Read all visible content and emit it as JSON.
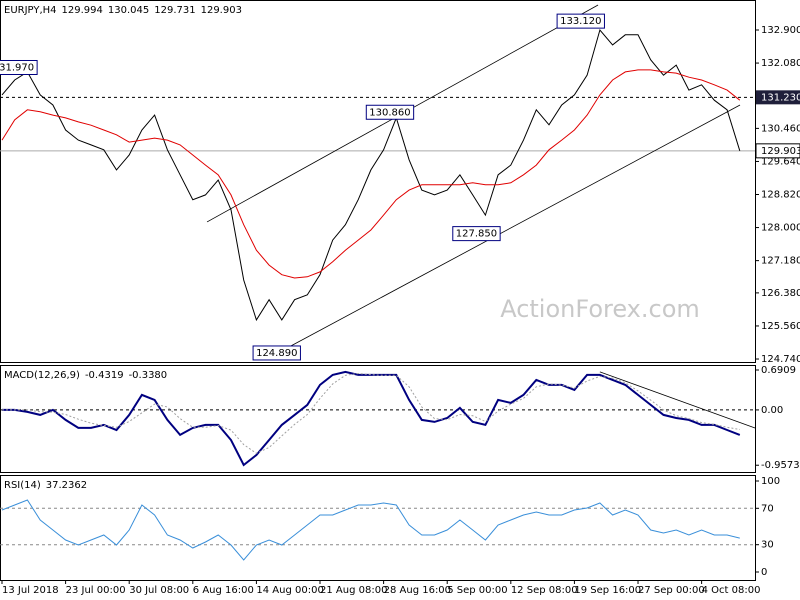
{
  "chart_data": [
    {
      "type": "line",
      "title": "EURJPY,H4",
      "ohlc": [
        129.994,
        130.045,
        129.731,
        129.903
      ],
      "x": [
        0,
        1,
        2,
        3,
        4,
        5,
        6,
        7,
        8,
        9,
        10,
        11,
        12,
        13,
        14,
        15,
        16,
        17,
        18,
        19,
        20,
        21,
        22,
        23,
        24,
        25,
        26,
        27,
        28,
        29,
        30,
        31,
        32,
        33,
        34,
        35,
        36,
        37,
        38,
        39,
        40,
        41,
        42,
        43,
        44,
        45,
        46,
        47,
        48,
        49,
        50,
        51,
        52,
        53,
        54,
        55,
        56,
        57,
        58
      ],
      "xlim": [
        0,
        59
      ],
      "xticks": [
        {
          "value": 0,
          "label": "13 Jul 2018"
        },
        {
          "value": 5,
          "label": "23 Jul 00:00"
        },
        {
          "value": 10,
          "label": "30 Jul 08:00"
        },
        {
          "value": 15,
          "label": "6 Aug 16:00"
        },
        {
          "value": 20,
          "label": "14 Aug 00:00"
        },
        {
          "value": 25,
          "label": "21 Aug 08:00"
        },
        {
          "value": 30,
          "label": "28 Aug 16:00"
        },
        {
          "value": 35,
          "label": "5 Sep 00:00"
        },
        {
          "value": 40,
          "label": "12 Sep 08:00"
        },
        {
          "value": 45,
          "label": "19 Sep 16:00"
        },
        {
          "value": 50,
          "label": "27 Sep 00:00"
        },
        {
          "value": 55,
          "label": "4 Oct 08:00"
        }
      ],
      "ylim": [
        124.666,
        133.644
      ],
      "yticks": [
        {
          "value": 132.9,
          "label": "132.900"
        },
        {
          "value": 132.08,
          "label": "132.080"
        },
        {
          "value": 130.46,
          "label": "130.460"
        },
        {
          "value": 129.64,
          "label": "129.640"
        },
        {
          "value": 128.82,
          "label": "128.820"
        },
        {
          "value": 128,
          "label": "128.000"
        },
        {
          "value": 127.18,
          "label": "127.180"
        },
        {
          "value": 126.38,
          "label": "126.380"
        },
        {
          "value": 125.56,
          "label": "125.560"
        },
        {
          "value": 124.74,
          "label": "124.740"
        }
      ],
      "series": [
        {
          "color": "#000000",
          "values": [
            131.29,
            131.66,
            131.86,
            131.29,
            131.04,
            130.42,
            130.17,
            130.05,
            129.93,
            129.43,
            129.8,
            130.42,
            130.79,
            129.93,
            129.31,
            128.69,
            128.81,
            129.18,
            128.44,
            126.7,
            125.71,
            126.21,
            125.71,
            126.21,
            126.33,
            126.83,
            127.69,
            128.07,
            128.69,
            129.43,
            129.93,
            130.72,
            129.68,
            128.93,
            128.81,
            128.93,
            129.31,
            128.81,
            128.31,
            129.31,
            129.55,
            130.17,
            130.92,
            130.55,
            131.04,
            131.29,
            131.78,
            132.9,
            132.53,
            132.78,
            132.78,
            132.16,
            131.78,
            132.03,
            131.41,
            131.54,
            131.16,
            130.92,
            129.903
          ]
        },
        {
          "color": "#e00000",
          "values": [
            130.17,
            130.67,
            130.92,
            130.87,
            130.79,
            130.72,
            130.62,
            130.54,
            130.42,
            130.3,
            130.12,
            130.17,
            130.22,
            130.17,
            130.05,
            129.8,
            129.55,
            129.31,
            128.81,
            128.07,
            127.44,
            127.07,
            126.83,
            126.75,
            126.78,
            126.9,
            127.15,
            127.44,
            127.69,
            127.94,
            128.31,
            128.69,
            128.93,
            129.06,
            129.06,
            129.06,
            129.06,
            129.11,
            129.06,
            129.06,
            129.11,
            129.31,
            129.55,
            129.93,
            130.17,
            130.42,
            130.79,
            131.29,
            131.66,
            131.86,
            131.91,
            131.91,
            131.86,
            131.83,
            131.73,
            131.66,
            131.54,
            131.41,
            131.16
          ]
        }
      ],
      "annotations": [
        {
          "x": 0.9,
          "y": 131.97,
          "label": "131.970"
        },
        {
          "x": 21.6,
          "y": 124.89,
          "label": "124.890"
        },
        {
          "x": 30.5,
          "y": 130.86,
          "label": "130.860"
        },
        {
          "x": 37.3,
          "y": 127.85,
          "label": "127.850"
        },
        {
          "x": 45.5,
          "y": 133.12,
          "label": "133.120"
        }
      ],
      "hline": {
        "value": 131.23,
        "label": "131.230"
      },
      "last": {
        "value": 129.903,
        "label": "129.903"
      },
      "trendlines": [
        {
          "x": [
            16.12,
            46.86
          ],
          "y": [
            128.14,
            133.52
          ]
        },
        {
          "x": [
            21.86,
            58.02
          ],
          "y": [
            124.92,
            131.04
          ]
        }
      ],
      "watermark": "ActionForex.com"
    },
    {
      "type": "line",
      "title": "MACD(12,26,9)",
      "title_values": [
        -0.4319,
        {
          "value": -0.338,
          "label": "-0.3380"
        }
      ],
      "ylim": [
        -1.0745,
        0.7776
      ],
      "yticks": [
        0.6909,
        {
          "value": 0,
          "label": "0.00"
        },
        -0.9573
      ],
      "series": [
        {
          "color": "#000080",
          "values": [
            0,
            0,
            -0.035,
            -0.087,
            0,
            -0.173,
            -0.312,
            -0.312,
            -0.26,
            -0.347,
            -0.087,
            0.26,
            0.173,
            -0.173,
            -0.433,
            -0.312,
            -0.26,
            -0.26,
            -0.52,
            -0.953,
            -0.78,
            -0.52,
            -0.26,
            -0.087,
            0.087,
            0.433,
            0.607,
            0.659,
            0.607,
            0.607,
            0.607,
            0.607,
            0.173,
            -0.173,
            -0.208,
            -0.139,
            0.035,
            -0.208,
            -0.26,
            0.173,
            0.121,
            0.26,
            0.52,
            0.433,
            0.433,
            0.347,
            0.607,
            0.607,
            0.52,
            0.433,
            0.26,
            0.087,
            -0.087,
            -0.139,
            -0.173,
            -0.26,
            -0.26,
            -0.347,
            -0.4319
          ]
        },
        {
          "color": "#a0a0a0",
          "values": [
            0,
            0,
            0,
            -0.03,
            -0.04,
            -0.08,
            -0.16,
            -0.23,
            -0.27,
            -0.3,
            -0.2,
            -0.05,
            0.1,
            0.05,
            -0.15,
            -0.3,
            -0.3,
            -0.27,
            -0.35,
            -0.6,
            -0.75,
            -0.65,
            -0.45,
            -0.25,
            -0.08,
            0.2,
            0.45,
            0.6,
            0.63,
            0.61,
            0.6,
            0.6,
            0.4,
            0.05,
            -0.15,
            -0.17,
            -0.08,
            -0.1,
            -0.2,
            -0.02,
            0.1,
            0.2,
            0.4,
            0.45,
            0.43,
            0.38,
            0.5,
            0.58,
            0.55,
            0.47,
            0.33,
            0.17,
            0,
            -0.1,
            -0.15,
            -0.22,
            -0.25,
            -0.3,
            -0.338
          ]
        }
      ],
      "trendlines": [
        {
          "x": [
            47.0,
            59.2
          ],
          "y": [
            0.659,
            -0.312
          ]
        }
      ]
    },
    {
      "type": "line",
      "title": "RSI(14)",
      "title_values": [
        37.2362
      ],
      "ylim": [
        -8.8,
        106.6
      ],
      "yticks": [
        100,
        70,
        30,
        0
      ],
      "levels": [
        70,
        30
      ],
      "series": [
        {
          "color": "#3a8fd9",
          "values": [
            68.1,
            73.6,
            79.1,
            57.1,
            46.2,
            35.2,
            29.7,
            35.2,
            40.7,
            29.7,
            46.2,
            73.6,
            62.6,
            40.7,
            35.2,
            26.4,
            33.0,
            40.7,
            29.7,
            13.2,
            29.7,
            35.2,
            29.7,
            40.7,
            51.6,
            62.6,
            62.6,
            68.1,
            73.6,
            73.6,
            75.8,
            73.6,
            51.6,
            40.7,
            40.7,
            46.2,
            57.1,
            46.2,
            35.2,
            51.6,
            57.1,
            62.6,
            65.9,
            62.6,
            62.6,
            68.1,
            70.3,
            75.8,
            62.6,
            68.1,
            62.6,
            46.2,
            42.9,
            46.2,
            40.7,
            46.2,
            40.7,
            40.7,
            37.2362
          ]
        }
      ]
    }
  ]
}
